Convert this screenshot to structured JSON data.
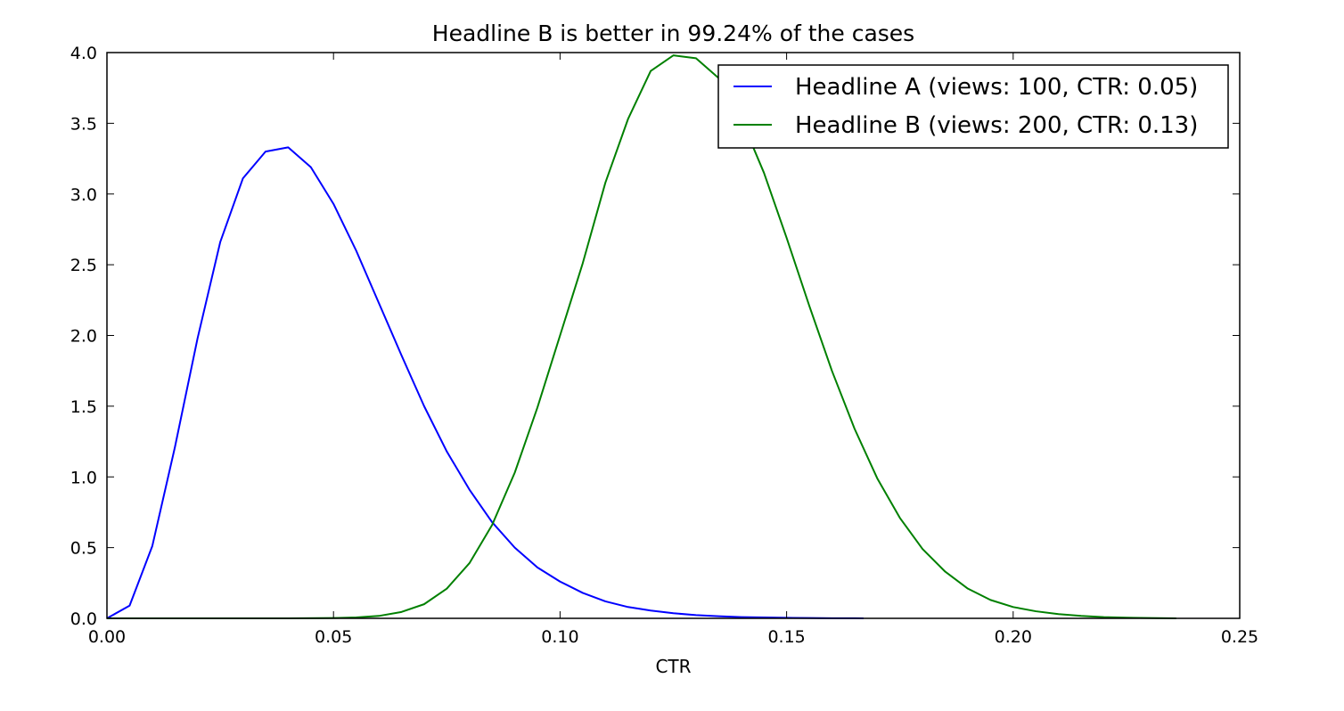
{
  "chart_data": {
    "type": "line",
    "title": "Headline B is better in 99.24% of the cases",
    "xlabel": "CTR",
    "ylabel": "",
    "xlim": [
      0.0,
      0.25
    ],
    "ylim": [
      0.0,
      4.0
    ],
    "xticks": [
      "0.00",
      "0.05",
      "0.10",
      "0.15",
      "0.20",
      "0.25"
    ],
    "yticks": [
      "0.0",
      "0.5",
      "1.0",
      "1.5",
      "2.0",
      "2.5",
      "3.0",
      "3.5",
      "4.0"
    ],
    "grid": false,
    "legend_position": "top-right",
    "series": [
      {
        "name": "Headline A (views: 100, CTR: 0.05)",
        "color": "#0000ff",
        "x": [
          0.0,
          0.005,
          0.01,
          0.015,
          0.02,
          0.025,
          0.03,
          0.035,
          0.04,
          0.045,
          0.05,
          0.055,
          0.06,
          0.065,
          0.07,
          0.075,
          0.08,
          0.085,
          0.09,
          0.095,
          0.1,
          0.105,
          0.11,
          0.115,
          0.12,
          0.125,
          0.13,
          0.135,
          0.14,
          0.145,
          0.15,
          0.155,
          0.16,
          0.165,
          0.167
        ],
        "y": [
          0.0,
          0.09,
          0.51,
          1.21,
          1.98,
          2.66,
          3.11,
          3.3,
          3.33,
          3.19,
          2.93,
          2.6,
          2.23,
          1.86,
          1.5,
          1.18,
          0.91,
          0.68,
          0.5,
          0.36,
          0.26,
          0.18,
          0.12,
          0.08,
          0.055,
          0.036,
          0.023,
          0.015,
          0.009,
          0.006,
          0.004,
          0.002,
          0.001,
          0.001,
          0.0
        ]
      },
      {
        "name": "Headline B (views: 200, CTR: 0.13)",
        "color": "#008000",
        "x": [
          0.0,
          0.02,
          0.04,
          0.05,
          0.055,
          0.06,
          0.065,
          0.07,
          0.075,
          0.08,
          0.085,
          0.09,
          0.095,
          0.1,
          0.105,
          0.11,
          0.115,
          0.12,
          0.125,
          0.13,
          0.135,
          0.14,
          0.145,
          0.15,
          0.155,
          0.16,
          0.165,
          0.17,
          0.175,
          0.18,
          0.185,
          0.19,
          0.195,
          0.2,
          0.205,
          0.21,
          0.215,
          0.22,
          0.225,
          0.23,
          0.236
        ],
        "y": [
          0.0,
          0.0,
          0.0,
          0.002,
          0.006,
          0.017,
          0.045,
          0.1,
          0.21,
          0.39,
          0.66,
          1.03,
          1.49,
          2.0,
          2.51,
          3.08,
          3.53,
          3.87,
          3.98,
          3.96,
          3.82,
          3.53,
          3.15,
          2.69,
          2.21,
          1.75,
          1.34,
          0.99,
          0.71,
          0.49,
          0.33,
          0.21,
          0.13,
          0.08,
          0.05,
          0.03,
          0.017,
          0.009,
          0.005,
          0.002,
          0.0
        ]
      }
    ]
  }
}
